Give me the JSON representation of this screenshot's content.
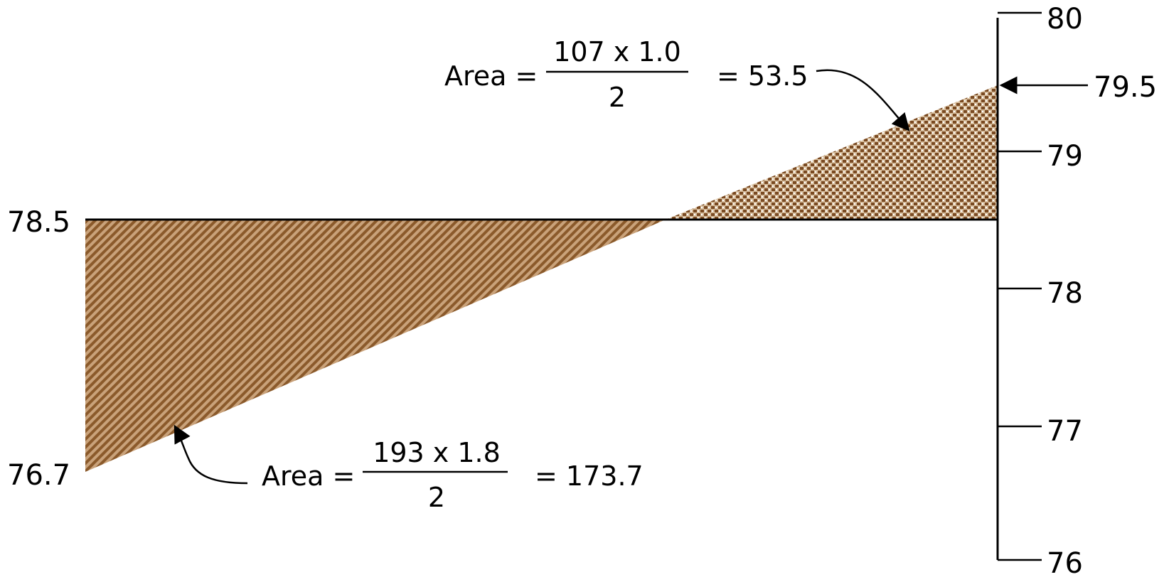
{
  "figure": {
    "scale_labels": [
      "80",
      "79",
      "78",
      "77",
      "76"
    ],
    "pointer_value": "79.5",
    "left_labels": {
      "upper": "78.5",
      "lower": "76.7"
    },
    "upper_annotation": {
      "prefix": "Area =",
      "numerator": "107 x 1.0",
      "denominator": "2",
      "result": "= 53.5"
    },
    "lower_annotation": {
      "prefix": "Area =",
      "numerator": "193 x 1.8",
      "denominator": "2",
      "result": "= 173.7"
    },
    "colors": {
      "fill_brown": "#8b5a2b",
      "fill_brown_light": "#c9a27a",
      "line": "#000000"
    }
  }
}
